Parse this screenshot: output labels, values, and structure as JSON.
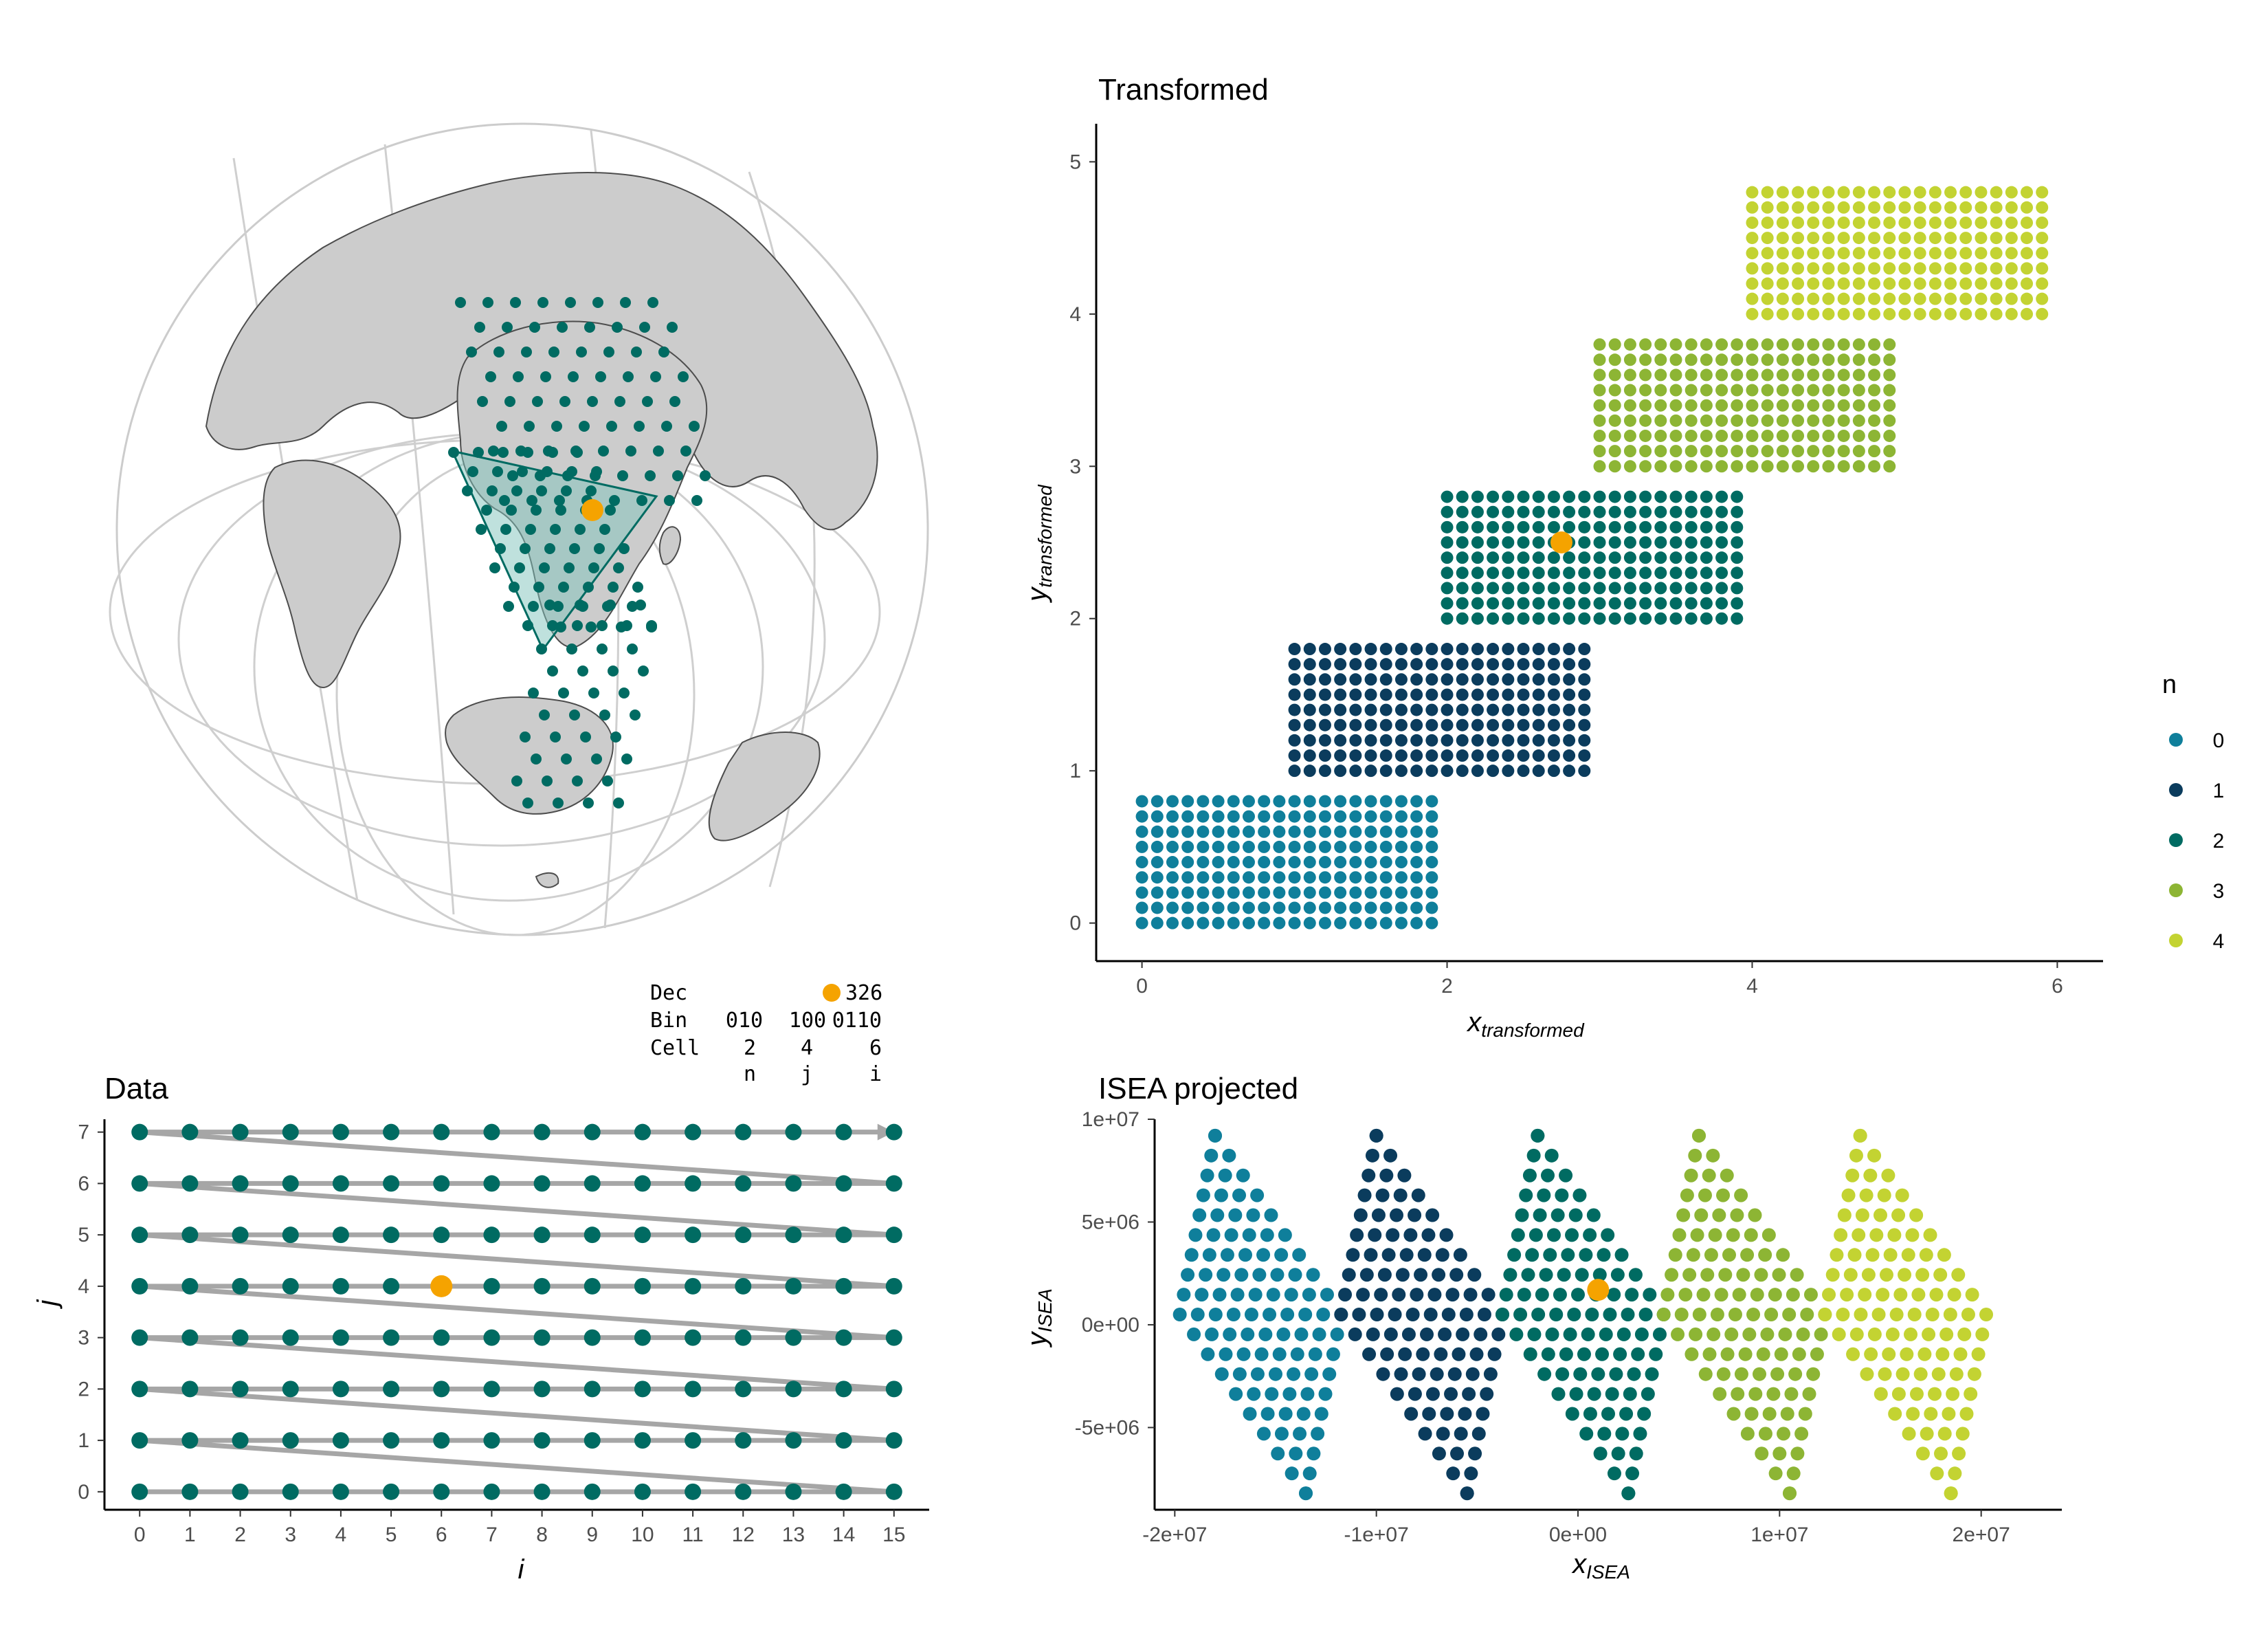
{
  "colors": {
    "n0": "#0f7f9b",
    "n1": "#0b3c5d",
    "n2": "#006b62",
    "n3": "#8db534",
    "n4": "#c3d332",
    "highlight": "#f5a300",
    "path": "#a6a6a6",
    "land": "#cccccc",
    "grid": "#cccccc",
    "triangle": "#7fc4bb"
  },
  "globe": {
    "description_icon": "globe-icon"
  },
  "binary_box": {
    "rows": [
      {
        "label": "Dec",
        "cols": [
          "",
          "",
          ""
        ],
        "value": "326"
      },
      {
        "label": "Bin",
        "cols": [
          "010",
          "100",
          "0110"
        ]
      },
      {
        "label": "Cell",
        "cols": [
          "2",
          "4",
          "6"
        ]
      },
      {
        "label": "",
        "cols": [
          "n",
          "j",
          "i"
        ]
      }
    ]
  },
  "chart_data": [
    {
      "id": "transformed",
      "type": "scatter",
      "title": "Transformed",
      "xlabel": "x",
      "xlabel_sub": "transformed",
      "ylabel": "y",
      "ylabel_sub": "transformed",
      "xlim": [
        -0.3,
        6.3
      ],
      "ylim": [
        -0.25,
        5.25
      ],
      "xticks": [
        0,
        2,
        4,
        6
      ],
      "yticks": [
        0,
        1,
        2,
        3,
        4,
        5
      ],
      "grid": false,
      "blocks": [
        {
          "n": 0,
          "x0": 0,
          "y0": 0,
          "cols": 20,
          "rows": 9,
          "step": 0.1
        },
        {
          "n": 1,
          "x0": 1,
          "y0": 1,
          "cols": 20,
          "rows": 9,
          "step": 0.1
        },
        {
          "n": 2,
          "x0": 2,
          "y0": 2,
          "cols": 20,
          "rows": 9,
          "step": 0.1
        },
        {
          "n": 3,
          "x0": 3,
          "y0": 3,
          "cols": 20,
          "rows": 9,
          "step": 0.1
        },
        {
          "n": 4,
          "x0": 4,
          "y0": 4,
          "cols": 20,
          "rows": 9,
          "step": 0.1
        }
      ],
      "highlight": {
        "x": 2.75,
        "y": 2.5
      },
      "legend": {
        "title": "n",
        "labels": [
          "0",
          "1",
          "2",
          "3",
          "4"
        ],
        "position": "right"
      }
    },
    {
      "id": "data",
      "type": "scatter",
      "title": "Data",
      "xlabel": "i",
      "ylabel": "j",
      "xlim": [
        -0.7,
        15.7
      ],
      "ylim": [
        -0.35,
        7.25
      ],
      "xticks": [
        0,
        1,
        2,
        3,
        4,
        5,
        6,
        7,
        8,
        9,
        10,
        11,
        12,
        13,
        14,
        15
      ],
      "yticks": [
        0,
        1,
        2,
        3,
        4,
        5,
        6,
        7
      ],
      "grid": false,
      "points": {
        "i_range": [
          0,
          15
        ],
        "j_range": [
          0,
          7
        ]
      },
      "highlight": {
        "i": 6,
        "j": 4
      },
      "path": "raster order from (0,0) to (15,7), row by row"
    },
    {
      "id": "isea",
      "type": "scatter",
      "title": "ISEA projected",
      "xlabel": "x",
      "xlabel_sub": "ISEA",
      "ylabel": "y",
      "ylabel_sub": "ISEA",
      "xlim": [
        -21000000,
        24000000
      ],
      "ylim": [
        -9000000,
        10000000
      ],
      "xticks": [
        -20000000,
        -10000000,
        0,
        10000000,
        20000000
      ],
      "xtick_labels": [
        "-2e+07",
        "-1e+07",
        "0e+00",
        "1e+07",
        "2e+07"
      ],
      "yticks": [
        -5000000,
        0,
        5000000,
        10000000
      ],
      "ytick_labels": [
        "-5e+06",
        "0e+00",
        "5e+06",
        "1e+07"
      ],
      "grid": false,
      "triangles": [
        {
          "n": 0,
          "lon_offset": -16000000
        },
        {
          "n": 1,
          "lon_offset": -8000000
        },
        {
          "n": 2,
          "lon_offset": 0
        },
        {
          "n": 3,
          "lon_offset": 8000000
        },
        {
          "n": 4,
          "lon_offset": 16000000
        }
      ],
      "highlight": {
        "x": 1000000,
        "y": 1700000
      }
    }
  ]
}
